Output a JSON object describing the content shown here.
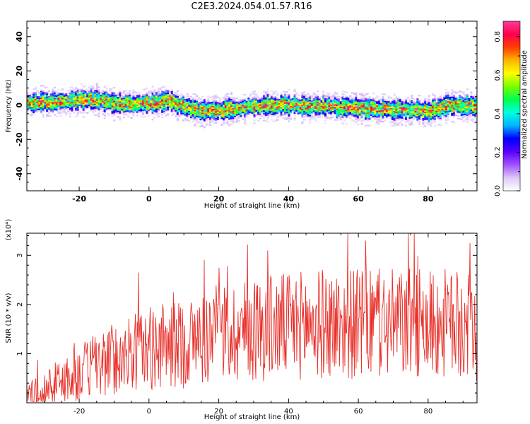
{
  "figure": {
    "title": "C2E3.2024.054.01.57.R16"
  },
  "chart_data": [
    {
      "type": "heatmap",
      "xlabel": "Height of straight line (km)",
      "ylabel": "Frequency (Hz)",
      "xlim": [
        -35,
        94
      ],
      "ylim": [
        -50,
        49
      ],
      "x_ticks": [
        -20,
        0,
        20,
        40,
        60,
        80
      ],
      "y_ticks": [
        -40,
        -20,
        0,
        20,
        40
      ],
      "colorbar": {
        "label": "Normalized spectral amplitude",
        "range": [
          0.0,
          0.88
        ],
        "ticks": [
          "0.0",
          "0.2",
          "0.4",
          "0.6",
          "0.8"
        ],
        "colormap": [
          "#ffffff",
          "#dcc8f5",
          "#a050ff",
          "#5a00ff",
          "#0000ff",
          "#00b4ff",
          "#00ffdc",
          "#00ff50",
          "#78ff00",
          "#ffff00",
          "#ffb400",
          "#ff3c00",
          "#ff0050",
          "#ff3c96"
        ]
      },
      "band": {
        "center_hz": [
          [
            -35,
            1
          ],
          [
            -25,
            2
          ],
          [
            -15,
            3
          ],
          [
            -8,
            0
          ],
          [
            0,
            1
          ],
          [
            5,
            2
          ],
          [
            10,
            -1
          ],
          [
            15,
            -4
          ],
          [
            22,
            -3
          ],
          [
            30,
            -1
          ],
          [
            38,
            0
          ],
          [
            45,
            -1
          ],
          [
            52,
            -1
          ],
          [
            58,
            -2
          ],
          [
            65,
            -2
          ],
          [
            72,
            -3
          ],
          [
            80,
            -4
          ],
          [
            86,
            0
          ],
          [
            93,
            -1
          ]
        ],
        "half_width_hz": 5,
        "peak_amplitude": 0.85
      },
      "grid": false
    },
    {
      "type": "line",
      "xlabel": "Height of straight line (km)",
      "ylabel": "SNR (10 * v/v)",
      "y_scale_label": "(x10⁴)",
      "xlim": [
        -35,
        94
      ],
      "ylim": [
        0,
        3.45
      ],
      "x_ticks": [
        -20,
        0,
        20,
        40,
        60,
        80
      ],
      "y_ticks": [
        1,
        2,
        3
      ],
      "line_color": "#e8302a",
      "series": [
        {
          "description_points": "SNR values in units of 1e4, sampled along height",
          "values": [
            [
              -35,
              0.1
            ],
            [
              -30,
              0.25
            ],
            [
              -25,
              0.45
            ],
            [
              -20,
              0.6
            ],
            [
              -15,
              0.75
            ],
            [
              -10,
              0.9
            ],
            [
              -5,
              1.0
            ],
            [
              0,
              1.1
            ],
            [
              5,
              1.15
            ],
            [
              10,
              1.2
            ],
            [
              15,
              1.3
            ],
            [
              20,
              1.4
            ],
            [
              25,
              1.45
            ],
            [
              30,
              1.5
            ],
            [
              35,
              1.55
            ],
            [
              40,
              1.55
            ],
            [
              45,
              1.6
            ],
            [
              50,
              1.6
            ],
            [
              55,
              1.6
            ],
            [
              60,
              1.6
            ],
            [
              65,
              1.6
            ],
            [
              70,
              1.6
            ],
            [
              75,
              1.6
            ],
            [
              80,
              1.6
            ],
            [
              85,
              1.6
            ],
            [
              90,
              1.55
            ],
            [
              94,
              1.5
            ]
          ],
          "noted_peaks": [
            [
              -3,
              2.65
            ],
            [
              7,
              2.25
            ],
            [
              20,
              2.75
            ],
            [
              34,
              3.1
            ],
            [
              57,
              3.45
            ],
            [
              62,
              3.3
            ],
            [
              76,
              3.45
            ],
            [
              92,
              3.25
            ]
          ]
        }
      ],
      "grid": false
    }
  ]
}
